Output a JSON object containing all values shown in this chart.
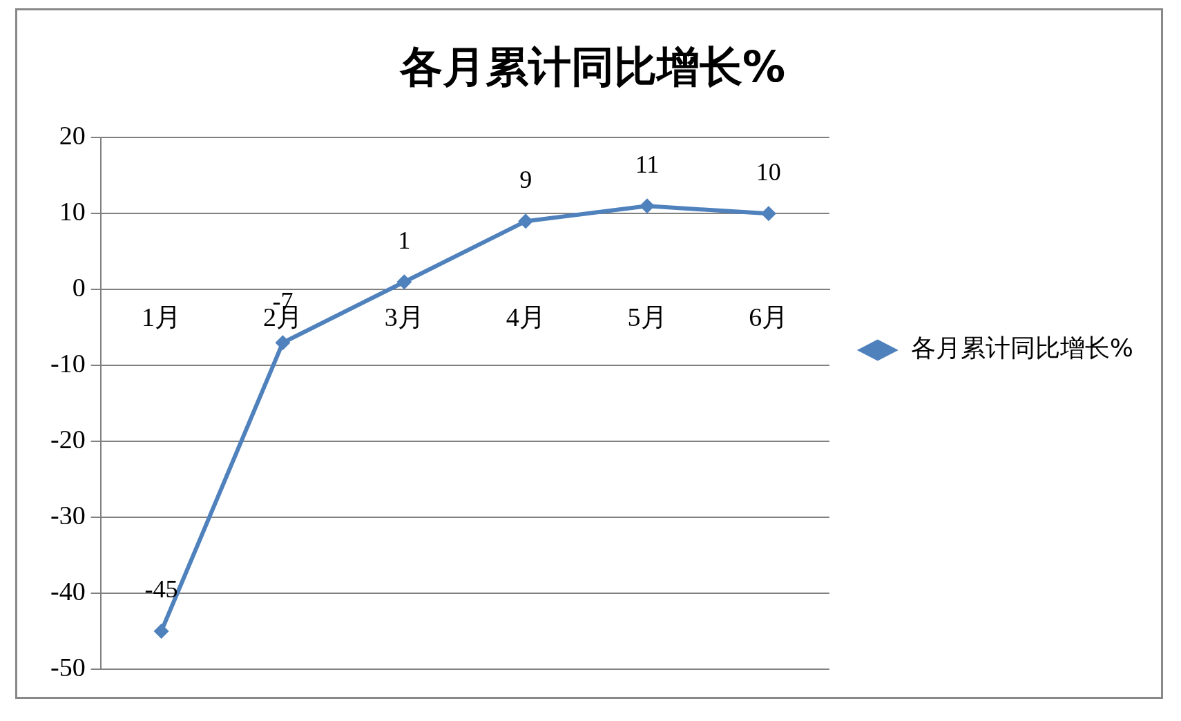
{
  "chart_data": {
    "type": "line",
    "title": "各月累计同比增长%",
    "categories": [
      "1月",
      "2月",
      "3月",
      "4月",
      "5月",
      "6月"
    ],
    "series": [
      {
        "name": "各月累计同比增长%",
        "color": "#4f81bd",
        "values": [
          -45,
          -7,
          1,
          9,
          11,
          10
        ]
      }
    ],
    "ylim": [
      -50,
      20
    ],
    "yticks": [
      -50,
      -40,
      -30,
      -20,
      -10,
      0,
      10,
      20
    ],
    "grid": "y",
    "legend": "right",
    "marker": "diamond",
    "data_labels": true
  }
}
